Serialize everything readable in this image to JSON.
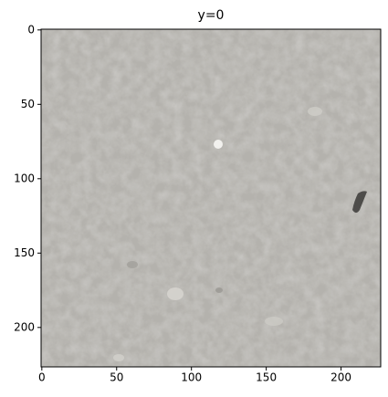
{
  "chart_data": {
    "type": "image",
    "title": "y=0",
    "xlim": [
      -0.5,
      226.5
    ],
    "ylim": [
      226.5,
      -0.5
    ],
    "xticks": [
      0,
      50,
      100,
      150,
      200
    ],
    "yticks": [
      0,
      50,
      100,
      150,
      200
    ]
  }
}
